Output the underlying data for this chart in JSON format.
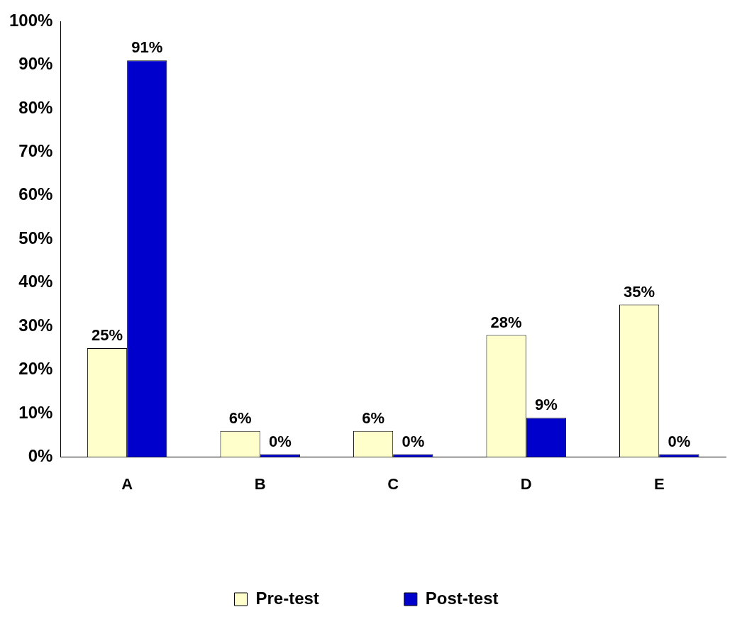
{
  "chart_data": {
    "type": "bar",
    "categories": [
      "A",
      "B",
      "C",
      "D",
      "E"
    ],
    "series": [
      {
        "name": "Pre-test",
        "color": "#ffffcc",
        "values": [
          25,
          6,
          6,
          28,
          35
        ],
        "value_labels": [
          "25%",
          "6%",
          "6%",
          "28%",
          "35%"
        ]
      },
      {
        "name": "Post-test",
        "color": "#0000cc",
        "values": [
          91,
          0,
          0,
          9,
          0
        ],
        "value_labels": [
          "91%",
          "0%",
          "0%",
          "9%",
          "0%"
        ]
      }
    ],
    "ylim": [
      0,
      100
    ],
    "yticks": [
      {
        "value": 0,
        "label": "0%"
      },
      {
        "value": 10,
        "label": "10%"
      },
      {
        "value": 20,
        "label": "20%"
      },
      {
        "value": 30,
        "label": "30%"
      },
      {
        "value": 40,
        "label": "40%"
      },
      {
        "value": 50,
        "label": "50%"
      },
      {
        "value": 60,
        "label": "60%"
      },
      {
        "value": 70,
        "label": "70%"
      },
      {
        "value": 80,
        "label": "80%"
      },
      {
        "value": 90,
        "label": "90%"
      },
      {
        "value": 100,
        "label": "100%"
      }
    ],
    "grid": false,
    "legend": "bottom"
  }
}
